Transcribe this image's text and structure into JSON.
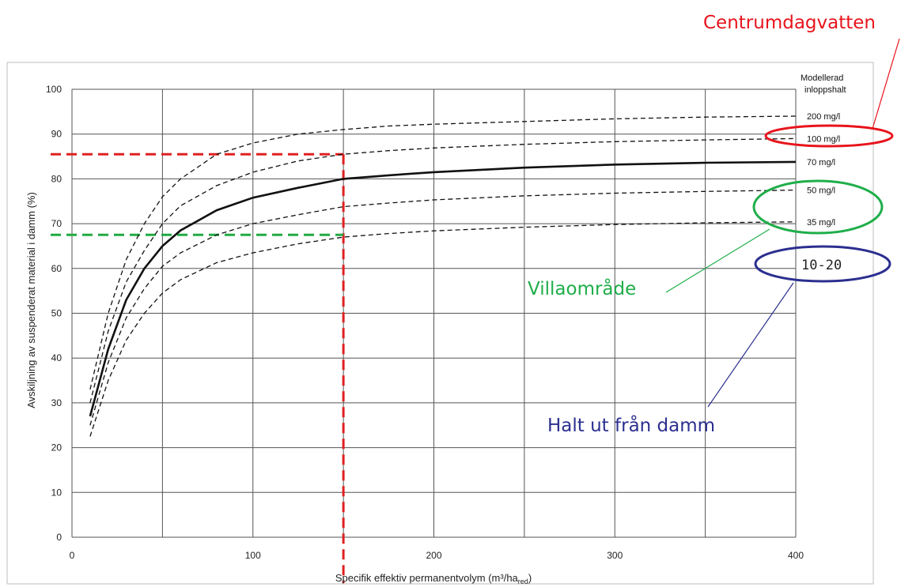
{
  "chart_data": {
    "type": "line",
    "title": "",
    "xlabel": "Specifik effektiv permanentvolym (m³/ha",
    "xlabel_subscript": "red",
    "xlabel_close": ")",
    "ylabel": "Avskiljning av suspenderat material i damm (%)",
    "xlim": [
      0,
      400
    ],
    "ylim": [
      0,
      100
    ],
    "x_ticks": [
      "0",
      "100",
      "200",
      "300",
      "400"
    ],
    "y_ticks": [
      "0",
      "10",
      "20",
      "30",
      "40",
      "50",
      "60",
      "70",
      "80",
      "90",
      "100"
    ],
    "grid": true,
    "legend_title": [
      "Modellerad",
      "inloppshalt"
    ],
    "series": [
      {
        "name": "200 mg/l",
        "style": "dashed",
        "x": [
          10,
          20,
          30,
          40,
          50,
          60,
          80,
          100,
          125,
          150,
          175,
          200,
          250,
          300,
          350,
          400
        ],
        "y": [
          33,
          50,
          62,
          70,
          76,
          80,
          85.5,
          88,
          90,
          91,
          91.8,
          92.2,
          92.8,
          93.4,
          93.8,
          94
        ]
      },
      {
        "name": "100 mg/l",
        "style": "dashed",
        "x": [
          10,
          20,
          30,
          40,
          50,
          60,
          80,
          100,
          125,
          150,
          175,
          200,
          250,
          300,
          350,
          400
        ],
        "y": [
          30,
          46,
          57,
          64,
          70,
          74,
          78.5,
          81.5,
          84,
          85.5,
          86.3,
          86.9,
          87.7,
          88.3,
          88.7,
          89
        ]
      },
      {
        "name": "70 mg/l",
        "style": "solid",
        "x": [
          10,
          20,
          30,
          40,
          50,
          60,
          80,
          100,
          125,
          150,
          175,
          200,
          250,
          300,
          350,
          400
        ],
        "y": [
          27,
          42,
          53,
          60,
          65,
          68.5,
          73,
          75.8,
          78,
          80,
          80.8,
          81.5,
          82.5,
          83.2,
          83.6,
          83.8
        ]
      },
      {
        "name": "50 mg/l",
        "style": "dashed",
        "x": [
          10,
          20,
          30,
          40,
          50,
          60,
          80,
          100,
          125,
          150,
          175,
          200,
          250,
          300,
          350,
          400
        ],
        "y": [
          25,
          39,
          49,
          55.5,
          60.5,
          63.5,
          67.5,
          70,
          72,
          73.8,
          74.6,
          75.3,
          76.2,
          76.8,
          77.2,
          77.5
        ]
      },
      {
        "name": "35 mg/l",
        "style": "dashed",
        "x": [
          10,
          20,
          30,
          40,
          50,
          60,
          80,
          100,
          125,
          150,
          175,
          200,
          250,
          300,
          350,
          400
        ],
        "y": [
          22.5,
          35,
          44,
          50,
          54.5,
          57.5,
          61.3,
          63.5,
          65.5,
          67,
          67.8,
          68.4,
          69.2,
          69.8,
          70.2,
          70.4
        ]
      }
    ],
    "reference_lines": [
      {
        "color": "#e02020",
        "x": 150,
        "y": 85.5
      },
      {
        "color": "#22aa44",
        "x": 150,
        "y": 67.5
      }
    ]
  },
  "annotations": {
    "centrum": {
      "text": "Centrumdagvatten",
      "color": "#e8141c"
    },
    "villa": {
      "text": "Villaområde",
      "color": "#1fae4a"
    },
    "halt": {
      "text": "Halt ut från damm",
      "color": "#2b2f8f"
    },
    "range": {
      "text": "10-20",
      "color": "#2b2f8f"
    }
  }
}
